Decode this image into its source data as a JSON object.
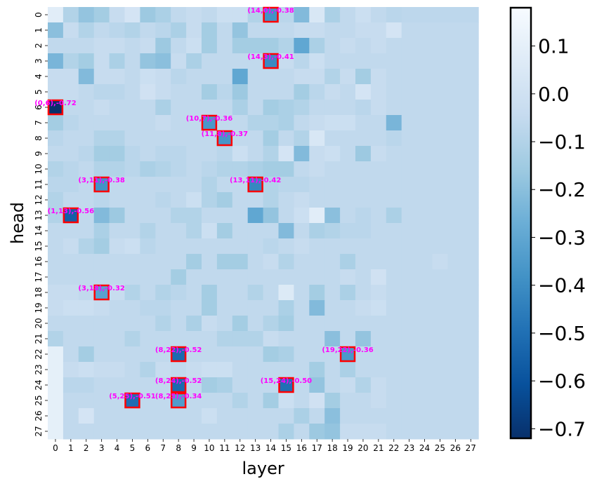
{
  "chart_data": {
    "type": "heatmap",
    "xlabel": "layer",
    "ylabel": "head",
    "x_ticks": [
      "0",
      "1",
      "2",
      "3",
      "4",
      "5",
      "6",
      "7",
      "8",
      "9",
      "10",
      "11",
      "12",
      "13",
      "14",
      "15",
      "16",
      "17",
      "18",
      "19",
      "20",
      "21",
      "22",
      "23",
      "24",
      "25",
      "26",
      "27"
    ],
    "y_ticks": [
      "0",
      "1",
      "2",
      "3",
      "4",
      "5",
      "6",
      "7",
      "8",
      "9",
      "10",
      "11",
      "12",
      "13",
      "14",
      "15",
      "16",
      "17",
      "18",
      "19",
      "20",
      "21",
      "22",
      "23",
      "24",
      "25",
      "26",
      "27"
    ],
    "colormap": "Blues_r",
    "vmin": -0.72,
    "vmax": 0.18,
    "colorbar_ticks": [
      {
        "value": 0.1,
        "label": "0.1"
      },
      {
        "value": 0.0,
        "label": "0.0"
      },
      {
        "value": -0.1,
        "label": "−0.1"
      },
      {
        "value": -0.2,
        "label": "−0.2"
      },
      {
        "value": -0.3,
        "label": "−0.3"
      },
      {
        "value": -0.4,
        "label": "−0.4"
      },
      {
        "value": -0.5,
        "label": "−0.5"
      },
      {
        "value": -0.6,
        "label": "−0.6"
      },
      {
        "value": -0.7,
        "label": "−0.7"
      }
    ],
    "row_label_rule": "rows are heads 0..27, columns are layers 0..27",
    "values": [
      [
        0.08,
        -0.1,
        -0.18,
        -0.14,
        -0.04,
        0.02,
        -0.16,
        -0.12,
        -0.06,
        -0.04,
        -0.06,
        -0.02,
        -0.02,
        -0.1,
        -0.38,
        -0.08,
        -0.22,
        0.04,
        -0.12,
        -0.06,
        -0.02,
        -0.06,
        -0.08,
        -0.07,
        -0.07,
        -0.07,
        -0.07,
        -0.07
      ],
      [
        -0.2,
        -0.04,
        -0.1,
        -0.06,
        -0.08,
        -0.1,
        -0.06,
        -0.08,
        -0.12,
        -0.04,
        -0.14,
        -0.06,
        -0.18,
        -0.06,
        -0.06,
        -0.06,
        -0.04,
        -0.04,
        -0.06,
        -0.06,
        -0.04,
        -0.04,
        0.02,
        -0.06,
        -0.06,
        -0.06,
        -0.06,
        -0.06
      ],
      [
        -0.06,
        -0.06,
        -0.06,
        -0.04,
        -0.04,
        -0.06,
        -0.04,
        -0.16,
        -0.06,
        -0.02,
        -0.14,
        -0.06,
        -0.14,
        -0.14,
        -0.14,
        -0.1,
        -0.3,
        -0.12,
        -0.06,
        -0.04,
        -0.06,
        -0.04,
        -0.06,
        -0.06,
        -0.06,
        -0.06,
        -0.06,
        -0.06
      ],
      [
        -0.24,
        -0.1,
        -0.14,
        -0.04,
        -0.12,
        -0.06,
        -0.18,
        -0.2,
        -0.04,
        -0.12,
        -0.06,
        -0.06,
        -0.06,
        -0.06,
        -0.41,
        -0.04,
        -0.08,
        -0.02,
        -0.06,
        -0.06,
        -0.06,
        -0.06,
        -0.06,
        -0.06,
        -0.06,
        -0.06,
        -0.06,
        -0.06
      ],
      [
        -0.04,
        -0.04,
        -0.22,
        -0.04,
        -0.04,
        -0.06,
        -0.02,
        -0.04,
        -0.08,
        -0.06,
        -0.06,
        -0.06,
        -0.3,
        -0.06,
        -0.06,
        -0.06,
        -0.04,
        -0.04,
        -0.1,
        -0.04,
        -0.14,
        -0.04,
        -0.06,
        -0.06,
        -0.06,
        -0.06,
        -0.06,
        -0.06
      ],
      [
        -0.04,
        -0.04,
        -0.06,
        -0.08,
        -0.08,
        -0.06,
        0.0,
        -0.04,
        -0.06,
        -0.06,
        -0.14,
        -0.08,
        -0.16,
        -0.06,
        -0.06,
        -0.06,
        -0.14,
        -0.08,
        -0.04,
        -0.06,
        0.02,
        -0.04,
        -0.06,
        -0.06,
        -0.06,
        -0.06,
        -0.06,
        -0.06
      ],
      [
        -0.72,
        -0.06,
        -0.06,
        -0.04,
        -0.06,
        -0.06,
        -0.06,
        -0.12,
        -0.06,
        -0.06,
        -0.06,
        -0.06,
        -0.12,
        -0.06,
        -0.14,
        -0.12,
        -0.1,
        -0.06,
        -0.06,
        -0.06,
        -0.08,
        -0.04,
        -0.06,
        -0.06,
        -0.06,
        -0.06,
        -0.06,
        -0.06
      ],
      [
        -0.14,
        -0.08,
        -0.06,
        -0.06,
        -0.06,
        -0.06,
        -0.06,
        -0.04,
        -0.06,
        -0.06,
        -0.36,
        -0.06,
        -0.06,
        -0.1,
        -0.1,
        -0.12,
        -0.06,
        -0.04,
        -0.02,
        -0.02,
        -0.06,
        -0.06,
        -0.24,
        -0.06,
        -0.06,
        -0.06,
        -0.06,
        -0.06
      ],
      [
        -0.08,
        -0.06,
        -0.06,
        -0.1,
        -0.1,
        -0.06,
        -0.06,
        -0.06,
        -0.06,
        -0.06,
        -0.06,
        -0.37,
        -0.06,
        -0.06,
        -0.14,
        -0.06,
        -0.1,
        0.04,
        -0.06,
        -0.06,
        -0.06,
        -0.06,
        -0.08,
        -0.06,
        -0.06,
        -0.06,
        -0.06,
        -0.06
      ],
      [
        -0.06,
        -0.06,
        -0.08,
        -0.14,
        -0.14,
        -0.08,
        -0.06,
        -0.08,
        -0.08,
        -0.06,
        -0.06,
        -0.08,
        -0.02,
        -0.06,
        -0.1,
        0.02,
        -0.22,
        -0.04,
        -0.02,
        -0.06,
        -0.16,
        -0.04,
        -0.06,
        -0.06,
        -0.06,
        -0.06,
        -0.06,
        -0.06
      ],
      [
        -0.1,
        -0.08,
        -0.06,
        -0.1,
        -0.1,
        -0.08,
        -0.12,
        -0.1,
        -0.08,
        -0.06,
        -0.08,
        -0.1,
        -0.1,
        -0.12,
        -0.14,
        -0.14,
        -0.06,
        -0.04,
        -0.06,
        -0.06,
        -0.06,
        -0.06,
        -0.06,
        -0.06,
        -0.06,
        -0.06,
        -0.06,
        -0.06
      ],
      [
        -0.08,
        -0.08,
        -0.06,
        -0.38,
        -0.06,
        -0.06,
        -0.06,
        -0.06,
        -0.06,
        -0.06,
        -0.1,
        -0.06,
        -0.06,
        -0.42,
        -0.1,
        -0.08,
        -0.08,
        -0.06,
        -0.06,
        -0.06,
        -0.06,
        -0.06,
        -0.06,
        -0.06,
        -0.06,
        -0.06,
        -0.06,
        -0.06
      ],
      [
        -0.1,
        -0.06,
        -0.06,
        -0.08,
        -0.06,
        -0.06,
        -0.06,
        -0.08,
        -0.06,
        -0.02,
        -0.1,
        -0.14,
        -0.06,
        -0.06,
        -0.1,
        -0.06,
        -0.04,
        -0.06,
        -0.06,
        -0.06,
        -0.06,
        -0.06,
        -0.06,
        -0.06,
        -0.06,
        -0.06,
        -0.06,
        -0.06
      ],
      [
        -0.1,
        -0.56,
        -0.06,
        -0.22,
        -0.16,
        -0.06,
        -0.06,
        -0.06,
        -0.1,
        -0.1,
        -0.06,
        -0.06,
        -0.06,
        -0.3,
        -0.18,
        -0.06,
        -0.02,
        0.08,
        -0.2,
        -0.06,
        -0.08,
        -0.06,
        -0.12,
        -0.06,
        -0.06,
        -0.06,
        -0.06,
        -0.06
      ],
      [
        -0.06,
        -0.06,
        -0.06,
        -0.12,
        -0.06,
        -0.06,
        -0.1,
        -0.06,
        -0.06,
        -0.1,
        -0.02,
        -0.14,
        -0.06,
        -0.06,
        -0.06,
        -0.22,
        -0.06,
        -0.12,
        -0.1,
        -0.08,
        -0.08,
        -0.06,
        -0.06,
        -0.06,
        -0.06,
        -0.06,
        -0.06,
        -0.06
      ],
      [
        -0.06,
        -0.04,
        -0.1,
        -0.14,
        -0.04,
        -0.02,
        -0.08,
        -0.06,
        -0.06,
        -0.06,
        -0.06,
        -0.06,
        -0.06,
        -0.06,
        -0.08,
        -0.06,
        -0.04,
        -0.06,
        -0.06,
        -0.06,
        -0.06,
        -0.06,
        -0.06,
        -0.06,
        -0.06,
        -0.06,
        -0.06,
        -0.06
      ],
      [
        -0.06,
        -0.06,
        -0.06,
        -0.06,
        -0.06,
        -0.06,
        -0.06,
        -0.06,
        -0.06,
        -0.14,
        -0.06,
        -0.14,
        -0.14,
        -0.06,
        -0.04,
        -0.1,
        -0.06,
        -0.06,
        -0.06,
        -0.12,
        -0.06,
        -0.06,
        -0.06,
        -0.06,
        -0.06,
        -0.04,
        -0.06,
        -0.06
      ],
      [
        -0.06,
        -0.06,
        -0.06,
        -0.06,
        -0.06,
        -0.06,
        -0.06,
        -0.06,
        -0.14,
        -0.06,
        -0.06,
        -0.06,
        -0.06,
        -0.06,
        -0.06,
        -0.06,
        -0.06,
        -0.06,
        -0.06,
        -0.04,
        -0.06,
        0.0,
        -0.06,
        -0.06,
        -0.06,
        -0.06,
        -0.06,
        -0.06
      ],
      [
        -0.04,
        -0.04,
        -0.06,
        -0.32,
        -0.04,
        -0.1,
        -0.06,
        -0.1,
        -0.08,
        -0.06,
        -0.14,
        -0.06,
        -0.06,
        -0.1,
        -0.06,
        0.06,
        -0.06,
        -0.14,
        -0.06,
        -0.12,
        -0.06,
        -0.04,
        -0.06,
        -0.06,
        -0.06,
        -0.06,
        -0.06,
        -0.06
      ],
      [
        -0.04,
        -0.02,
        -0.02,
        -0.04,
        -0.06,
        -0.06,
        -0.08,
        -0.08,
        -0.06,
        -0.06,
        -0.14,
        -0.06,
        -0.06,
        -0.06,
        -0.06,
        -0.12,
        -0.06,
        -0.22,
        -0.06,
        -0.06,
        -0.04,
        -0.02,
        -0.06,
        -0.06,
        -0.06,
        -0.06,
        -0.06,
        -0.06
      ],
      [
        -0.06,
        -0.06,
        -0.06,
        -0.06,
        -0.06,
        -0.06,
        -0.06,
        -0.1,
        -0.06,
        -0.12,
        -0.04,
        -0.06,
        -0.14,
        -0.06,
        -0.1,
        -0.14,
        -0.06,
        -0.06,
        -0.06,
        -0.06,
        -0.06,
        -0.06,
        -0.06,
        -0.06,
        -0.06,
        -0.06,
        -0.06,
        -0.06
      ],
      [
        -0.1,
        -0.06,
        -0.06,
        -0.06,
        -0.06,
        -0.1,
        -0.06,
        -0.06,
        -0.06,
        -0.06,
        -0.06,
        -0.1,
        -0.1,
        -0.1,
        -0.04,
        -0.06,
        -0.06,
        -0.06,
        -0.2,
        -0.06,
        -0.18,
        -0.06,
        -0.06,
        -0.06,
        -0.06,
        -0.06,
        -0.06,
        -0.06
      ],
      [
        0.1,
        -0.06,
        -0.14,
        -0.06,
        -0.06,
        -0.06,
        -0.06,
        -0.06,
        -0.52,
        -0.06,
        -0.06,
        -0.06,
        -0.06,
        -0.06,
        -0.14,
        -0.12,
        -0.06,
        -0.06,
        -0.06,
        -0.36,
        -0.06,
        -0.06,
        -0.06,
        -0.06,
        -0.06,
        -0.06,
        -0.06,
        -0.06
      ],
      [
        0.1,
        -0.04,
        -0.02,
        -0.04,
        -0.04,
        -0.06,
        -0.1,
        -0.04,
        -0.06,
        -0.04,
        -0.02,
        -0.02,
        -0.06,
        -0.06,
        -0.06,
        -0.06,
        -0.06,
        -0.14,
        -0.06,
        -0.12,
        -0.06,
        -0.06,
        -0.06,
        -0.06,
        -0.06,
        -0.06,
        -0.06,
        -0.06
      ],
      [
        0.1,
        -0.08,
        -0.08,
        -0.06,
        -0.06,
        -0.06,
        -0.06,
        -0.06,
        -0.52,
        -0.06,
        -0.14,
        -0.12,
        -0.06,
        -0.06,
        -0.06,
        -0.5,
        -0.06,
        -0.18,
        -0.06,
        -0.04,
        -0.1,
        -0.04,
        -0.06,
        -0.06,
        -0.06,
        -0.06,
        -0.06,
        -0.06
      ],
      [
        0.1,
        -0.06,
        -0.06,
        -0.06,
        -0.06,
        -0.51,
        -0.06,
        -0.06,
        -0.34,
        -0.06,
        -0.06,
        -0.06,
        -0.1,
        -0.06,
        -0.14,
        -0.02,
        -0.06,
        0.0,
        -0.14,
        -0.06,
        -0.06,
        -0.04,
        -0.06,
        -0.06,
        -0.06,
        -0.06,
        -0.06,
        -0.06
      ],
      [
        0.1,
        -0.06,
        0.02,
        -0.06,
        -0.06,
        -0.06,
        -0.06,
        -0.06,
        -0.06,
        -0.06,
        -0.02,
        -0.06,
        -0.06,
        -0.06,
        -0.06,
        -0.06,
        -0.12,
        -0.06,
        -0.2,
        -0.06,
        -0.06,
        -0.06,
        -0.06,
        -0.06,
        -0.06,
        -0.06,
        -0.06,
        -0.06
      ],
      [
        0.1,
        -0.06,
        -0.06,
        -0.06,
        -0.06,
        -0.06,
        -0.06,
        -0.06,
        -0.06,
        -0.06,
        -0.06,
        -0.06,
        -0.06,
        -0.06,
        -0.06,
        -0.12,
        -0.06,
        -0.16,
        -0.18,
        -0.04,
        -0.04,
        -0.04,
        -0.06,
        -0.06,
        -0.06,
        -0.06,
        -0.06,
        -0.06
      ]
    ],
    "annotations": [
      {
        "layer": 14,
        "head": 0,
        "label": "(14,0),-0.38"
      },
      {
        "layer": 14,
        "head": 3,
        "label": "(14,3),-0.41"
      },
      {
        "layer": 0,
        "head": 6,
        "label": "(0,6),-0.72"
      },
      {
        "layer": 10,
        "head": 7,
        "label": "(10,7),-0.36"
      },
      {
        "layer": 11,
        "head": 8,
        "label": "(11,8),-0.37"
      },
      {
        "layer": 3,
        "head": 11,
        "label": "(3,11),-0.38"
      },
      {
        "layer": 13,
        "head": 11,
        "label": "(13,11),-0.42"
      },
      {
        "layer": 1,
        "head": 13,
        "label": "(1,13),-0.56"
      },
      {
        "layer": 3,
        "head": 18,
        "label": "(3,18),-0.32"
      },
      {
        "layer": 8,
        "head": 22,
        "label": "(8,22),-0.52"
      },
      {
        "layer": 19,
        "head": 22,
        "label": "(19,22),-0.36"
      },
      {
        "layer": 8,
        "head": 24,
        "label": "(8,24),-0.52"
      },
      {
        "layer": 15,
        "head": 24,
        "label": "(15,24),-0.50"
      },
      {
        "layer": 5,
        "head": 25,
        "label": "(5,25),-0.51"
      },
      {
        "layer": 8,
        "head": 25,
        "label": "(8,25),-0.34"
      }
    ]
  },
  "colors": {
    "annotation_text": "#ff00ff",
    "annotation_box": "#ff0000",
    "cmap_low": "#08306b",
    "cmap_high": "#f7fbff"
  }
}
